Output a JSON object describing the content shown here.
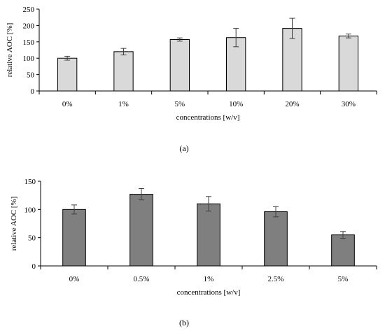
{
  "chart_data": [
    {
      "type": "bar",
      "categories": [
        "0%",
        "1%",
        "5%",
        "10%",
        "20%",
        "30%"
      ],
      "values": [
        100,
        120,
        157,
        163,
        191,
        168
      ],
      "errors": [
        6,
        10,
        5,
        28,
        31,
        6
      ],
      "xlabel": "concentrations [w/v]",
      "ylabel": "relative AOC [%]",
      "ylim": [
        0,
        250
      ],
      "yticks": [
        0,
        50,
        100,
        150,
        200,
        250
      ],
      "bar_color": "#d9d9d9",
      "caption": "(a)"
    },
    {
      "type": "bar",
      "categories": [
        "0%",
        "0.5%",
        "1%",
        "2.5%",
        "5%"
      ],
      "values": [
        100,
        127,
        110,
        96,
        55
      ],
      "errors": [
        8,
        10,
        13,
        9,
        6
      ],
      "xlabel": "concentrations [w/v]",
      "ylabel": "relative AOC [%]",
      "ylim": [
        0,
        150
      ],
      "yticks": [
        0,
        50,
        100,
        150
      ],
      "bar_color": "#7f7f7f",
      "caption": "(b)"
    }
  ]
}
